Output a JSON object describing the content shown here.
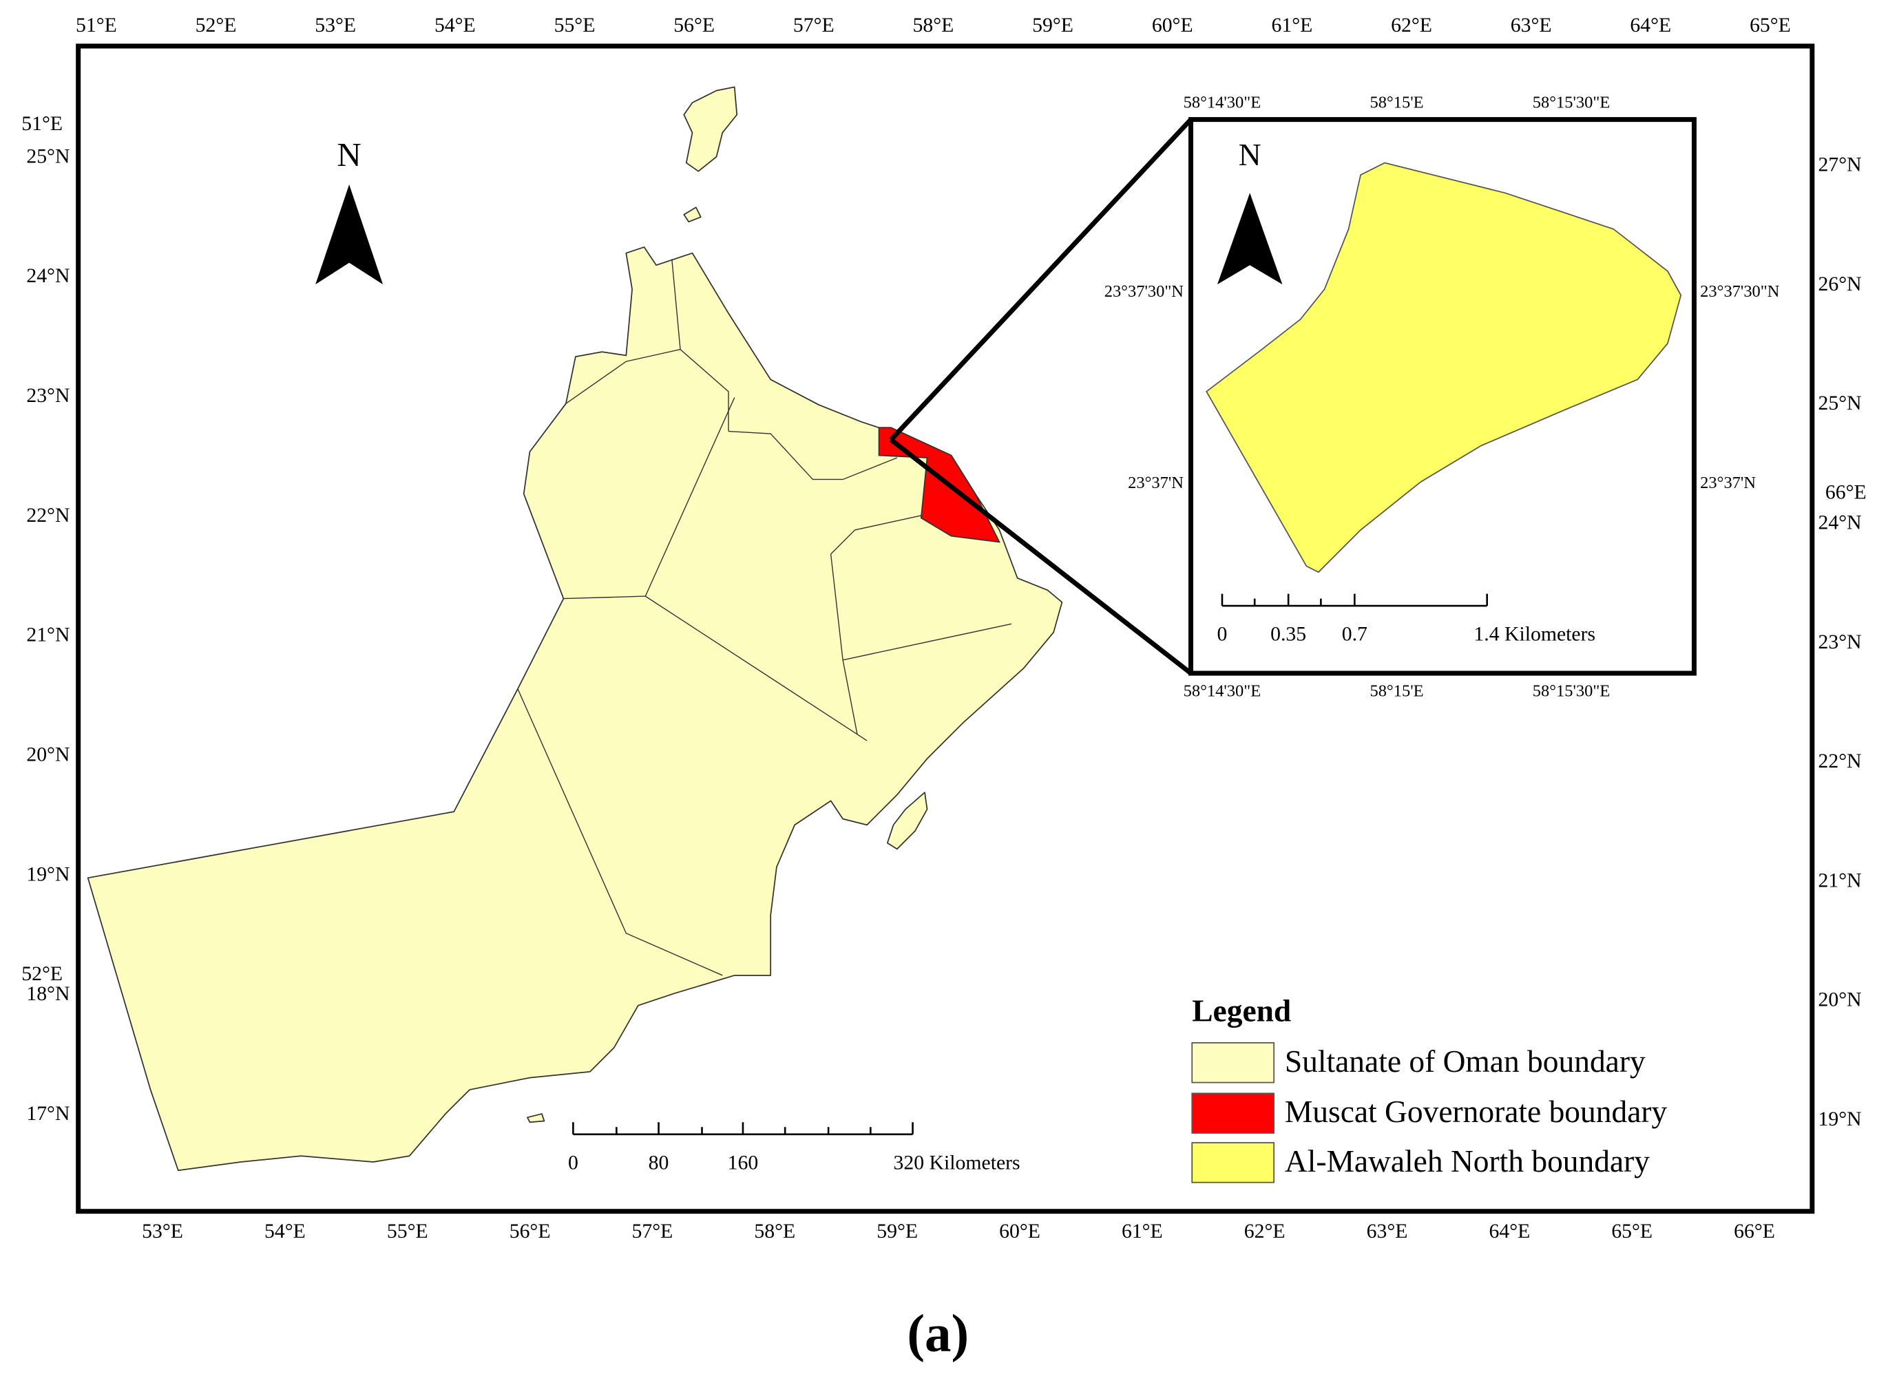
{
  "map": {
    "top_lon_labels": [
      "51°E",
      "52°E",
      "53°E",
      "54°E",
      "55°E",
      "56°E",
      "57°E",
      "58°E",
      "59°E",
      "60°E",
      "61°E",
      "62°E",
      "63°E",
      "64°E",
      "65°E"
    ],
    "bottom_lon_labels": [
      "53°E",
      "54°E",
      "55°E",
      "56°E",
      "57°E",
      "58°E",
      "59°E",
      "60°E",
      "61°E",
      "62°E",
      "63°E",
      "64°E",
      "65°E",
      "66°E"
    ],
    "left_lat_labels": [
      "25°N",
      "24°N",
      "23°N",
      "22°N",
      "21°N",
      "20°N",
      "19°N",
      "18°N",
      "17°N"
    ],
    "right_lat_labels": [
      "27°N",
      "26°N",
      "25°N",
      "24°N",
      "23°N",
      "22°N",
      "21°N",
      "20°N",
      "19°N"
    ],
    "stray_labels": [
      "51°E",
      "52°E",
      "66°E"
    ],
    "north_label": "N",
    "scale_labels": [
      "0",
      "80",
      "160",
      "320 Kilometers"
    ]
  },
  "inset": {
    "top_labels": [
      "58°14'30\"E",
      "58°15'E",
      "58°15'30\"E"
    ],
    "bottom_labels": [
      "58°14'30\"E",
      "58°15'E",
      "58°15'30\"E"
    ],
    "left_labels": [
      "23°37'30\"N",
      "23°37'N"
    ],
    "right_labels": [
      "23°37'30\"N",
      "23°37'N"
    ],
    "north_label": "N",
    "scale_labels": [
      "0",
      "0.35",
      "0.7",
      "1.4 Kilometers"
    ]
  },
  "legend": {
    "title": "Legend",
    "items": [
      "Sultanate of Oman boundary",
      "Muscat Governorate boundary",
      "Al-Mawaleh North boundary"
    ]
  },
  "caption": "(a)"
}
